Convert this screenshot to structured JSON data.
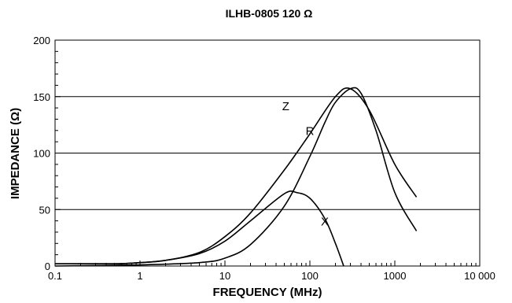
{
  "chart_data": {
    "type": "line",
    "title": "ILHB-0805 120 Ω",
    "xlabel": "FREQUENCY (MHz)",
    "ylabel": "IMPEDANCE (Ω)",
    "xscale": "log",
    "xlim": [
      0.1,
      10000
    ],
    "ylim": [
      0,
      200
    ],
    "x_tick_labels": [
      "0.1",
      "1",
      "10",
      "100",
      "1000",
      "10 000"
    ],
    "y_tick_labels": [
      "0",
      "50",
      "100",
      "150",
      "200"
    ],
    "grid": "horizontal",
    "series": [
      {
        "name": "Z",
        "x": [
          0.1,
          0.5,
          1,
          2,
          5,
          10,
          20,
          50,
          100,
          200,
          300,
          500,
          1000,
          1800
        ],
        "y": [
          2,
          2,
          3,
          5,
          12,
          26,
          47,
          85,
          117,
          150,
          157,
          138,
          90,
          61
        ]
      },
      {
        "name": "R",
        "x": [
          0.1,
          1,
          5,
          10,
          20,
          50,
          100,
          150,
          200,
          300,
          400,
          600,
          1000,
          1800
        ],
        "y": [
          0,
          1,
          3,
          7,
          19,
          53,
          97,
          127,
          145,
          157,
          153,
          120,
          65,
          31
        ]
      },
      {
        "name": "X",
        "x": [
          0.1,
          0.5,
          1,
          2,
          5,
          10,
          20,
          50,
          70,
          100,
          150,
          200,
          250
        ],
        "y": [
          2,
          2,
          3,
          5,
          11,
          22,
          40,
          64,
          65,
          60,
          42,
          20,
          0
        ]
      }
    ]
  }
}
